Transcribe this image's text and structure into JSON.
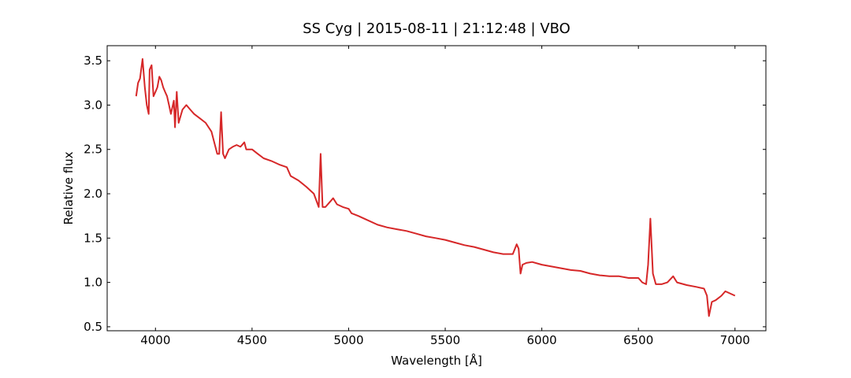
{
  "chart_data": {
    "type": "line",
    "title": "SS Cyg | 2015-08-11 | 21:12:48 | VBO",
    "xlabel": "Wavelength [Å]",
    "ylabel": "Relative flux",
    "xlim": [
      3750,
      7160
    ],
    "ylim": [
      0.455,
      3.67
    ],
    "xticks": [
      4000,
      4500,
      5000,
      5500,
      6000,
      6500,
      7000
    ],
    "yticks": [
      {
        "value": 0.5,
        "label": "0.5"
      },
      {
        "value": 1,
        "label": "1.0"
      },
      {
        "value": 1.5,
        "label": "1.5"
      },
      {
        "value": 2,
        "label": "2.0"
      },
      {
        "value": 2.5,
        "label": "2.5"
      },
      {
        "value": 3,
        "label": "3.0"
      },
      {
        "value": 3.5,
        "label": "3.5"
      }
    ],
    "series": [
      {
        "color": "#d62728",
        "x": [
          3900,
          3910,
          3920,
          3933,
          3945,
          3955,
          3965,
          3970,
          3980,
          3990,
          4000,
          4010,
          4020,
          4030,
          4040,
          4050,
          4060,
          4070,
          4080,
          4095,
          4101,
          4110,
          4120,
          4140,
          4160,
          4180,
          4200,
          4230,
          4260,
          4290,
          4320,
          4330,
          4340,
          4350,
          4360,
          4380,
          4400,
          4420,
          4440,
          4460,
          4470,
          4500,
          4530,
          4560,
          4600,
          4640,
          4680,
          4700,
          4740,
          4780,
          4820,
          4845,
          4855,
          4865,
          4880,
          4900,
          4920,
          4940,
          4970,
          5000,
          5015,
          5050,
          5100,
          5150,
          5200,
          5250,
          5300,
          5350,
          5400,
          5450,
          5500,
          5550,
          5600,
          5650,
          5700,
          5750,
          5800,
          5850,
          5870,
          5880,
          5890,
          5900,
          5920,
          5950,
          6000,
          6050,
          6100,
          6150,
          6200,
          6250,
          6300,
          6350,
          6400,
          6450,
          6500,
          6520,
          6540,
          6550,
          6562,
          6575,
          6590,
          6620,
          6650,
          6680,
          6700,
          6750,
          6800,
          6840,
          6855,
          6865,
          6880,
          6900,
          6930,
          6950,
          6970,
          7000
        ],
        "values": [
          3.1,
          3.25,
          3.3,
          3.52,
          3.2,
          3.0,
          2.9,
          3.4,
          3.45,
          3.1,
          3.15,
          3.2,
          3.32,
          3.28,
          3.2,
          3.15,
          3.1,
          3.0,
          2.9,
          3.05,
          2.75,
          3.15,
          2.8,
          2.95,
          3.0,
          2.95,
          2.9,
          2.85,
          2.8,
          2.7,
          2.45,
          2.45,
          2.92,
          2.45,
          2.4,
          2.5,
          2.53,
          2.55,
          2.53,
          2.58,
          2.5,
          2.5,
          2.45,
          2.4,
          2.37,
          2.33,
          2.3,
          2.2,
          2.15,
          2.08,
          2.0,
          1.85,
          2.45,
          1.85,
          1.85,
          1.9,
          1.95,
          1.88,
          1.85,
          1.83,
          1.78,
          1.75,
          1.7,
          1.65,
          1.62,
          1.6,
          1.58,
          1.55,
          1.52,
          1.5,
          1.48,
          1.45,
          1.42,
          1.4,
          1.37,
          1.34,
          1.32,
          1.32,
          1.43,
          1.38,
          1.1,
          1.2,
          1.22,
          1.23,
          1.2,
          1.18,
          1.16,
          1.14,
          1.13,
          1.1,
          1.08,
          1.07,
          1.07,
          1.05,
          1.05,
          1.0,
          0.98,
          1.2,
          1.72,
          1.1,
          0.98,
          0.98,
          1.0,
          1.07,
          1.0,
          0.97,
          0.95,
          0.93,
          0.85,
          0.62,
          0.78,
          0.8,
          0.85,
          0.9,
          0.88,
          0.85
        ]
      }
    ]
  }
}
